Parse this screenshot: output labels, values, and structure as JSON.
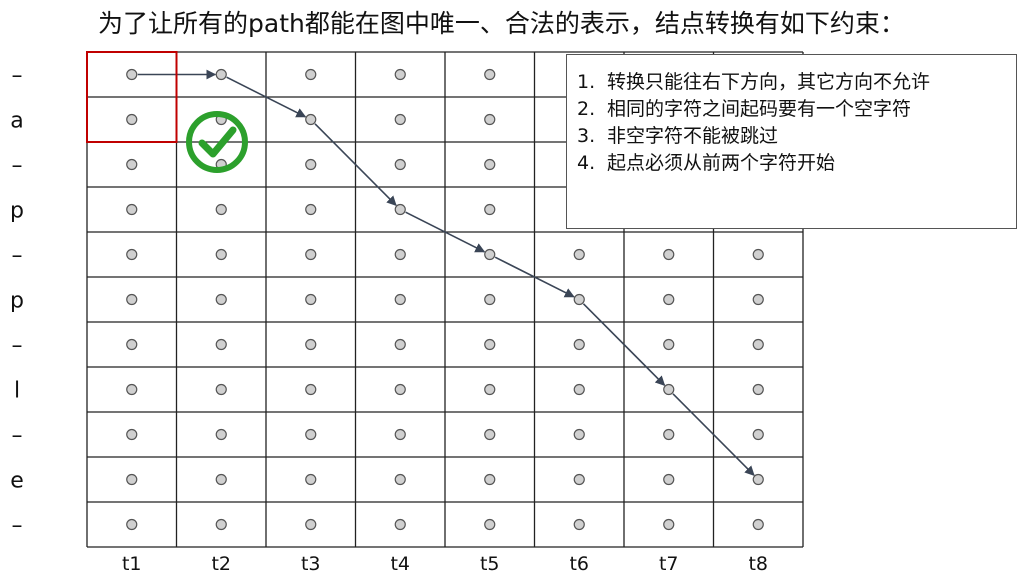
{
  "title": "为了让所有的path都能在图中唯一、合法的表示，结点转换有如下约束：",
  "rules": [
    {
      "num": "1.",
      "text": "转换只能往右下方向，其它方向不允许"
    },
    {
      "num": "2.",
      "text": "相同的字符之间起码要有一个空字符"
    },
    {
      "num": "3.",
      "text": "非空字符不能被跳过"
    },
    {
      "num": "4.",
      "text": "起点必须从前两个字符开始"
    }
  ],
  "row_labels": [
    "–",
    "a",
    "–",
    "p",
    "–",
    "p",
    "–",
    "l",
    "–",
    "e",
    "–"
  ],
  "column_labels": [
    "t1",
    "t2",
    "t3",
    "t4",
    "t5",
    "t6",
    "t7",
    "t8"
  ],
  "path": [
    {
      "t": 1,
      "row": 1
    },
    {
      "t": 2,
      "row": 1
    },
    {
      "t": 3,
      "row": 2
    },
    {
      "t": 4,
      "row": 4
    },
    {
      "t": 5,
      "row": 5
    },
    {
      "t": 6,
      "row": 6
    },
    {
      "t": 7,
      "row": 8
    },
    {
      "t": 8,
      "row": 10
    }
  ],
  "start_cells": [
    {
      "t": 1,
      "row": 1
    },
    {
      "t": 1,
      "row": 2
    }
  ],
  "check_icon": "green-check-circle-icon",
  "colors": {
    "grid": "#222222",
    "node_fill": "#d0d0d0",
    "node_stroke": "#555555",
    "arrow": "#3a4556",
    "highlight": "#c00000",
    "check": "#2ca02c"
  }
}
